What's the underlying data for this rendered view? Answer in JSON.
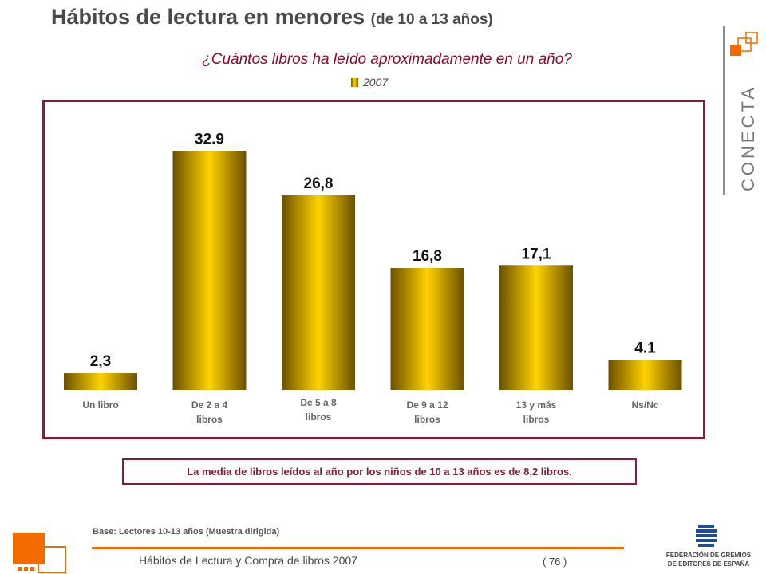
{
  "title": "Hábitos de lectura en menores",
  "title_sub": "(de 10 a 13 años)",
  "question": "¿Cuántos libros ha leído aproximadamente en un año?",
  "note": "La media de libros leídos al año por los niños de 10 a 13 años es de 8,2 libros.",
  "base": "Base: Lectores 10-13 años (Muestra dirigida)",
  "footer": "Hábitos de Lectura y Compra de libros 2007",
  "page_number": "( 76 )",
  "brand": "CONECTA",
  "publisher_line1": "FEDERACIÓN DE GREMIOS",
  "publisher_line2": "DE EDITORES DE ESPAÑA",
  "colors": {
    "accent": "#8b1a3a",
    "orange": "#f26a00",
    "bar_light": "#ffd200",
    "bar_dark": "#6b5000"
  },
  "chart_data": {
    "type": "bar",
    "categories": [
      "Un libro",
      "De 2 a 4 libros",
      "De 5 a 8 libros",
      "De 9 a 12 libros",
      "13 y más libros",
      "Ns/Nc"
    ],
    "series": [
      {
        "name": "2007",
        "values": [
          2.3,
          32.9,
          26.8,
          16.8,
          17.1,
          4.1
        ]
      }
    ],
    "data_labels": [
      "2,3",
      "32.9",
      "26,8",
      "16,8",
      "17,1",
      "4.1"
    ],
    "legend_position": "top-center",
    "grid": false,
    "ylim": [
      0,
      37
    ]
  }
}
